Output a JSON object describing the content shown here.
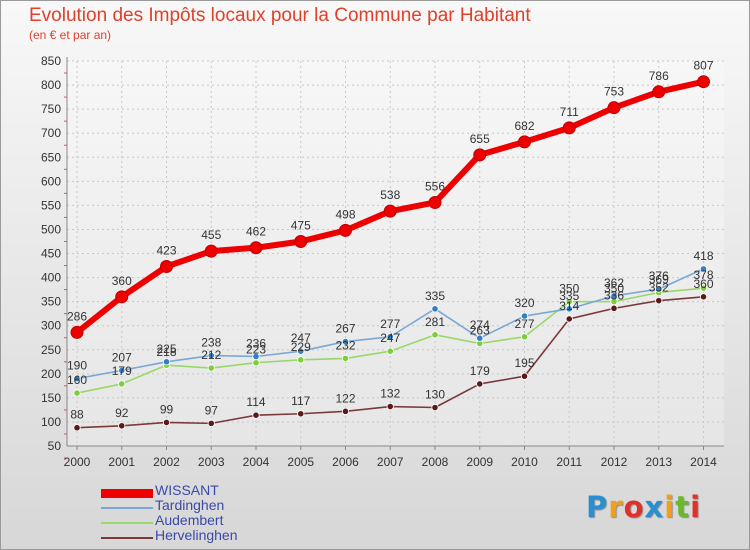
{
  "title": "Evolution des Impôts locaux pour la Commune par Habitant",
  "subtitle": "(en € et par an)",
  "logo": {
    "letters": [
      "P",
      "r",
      "o",
      "x",
      "i",
      "t",
      "i"
    ],
    "colors": [
      "#2a8fd0",
      "#f0a020",
      "#e0302a",
      "#2a8fd0",
      "#f0a020",
      "#6ab830",
      "#e0302a"
    ]
  },
  "chart_data": {
    "type": "line",
    "title": "Evolution des Impôts locaux pour la Commune par Habitant",
    "xlabel": "",
    "ylabel": "(en € et par an)",
    "categories": [
      "2000",
      "2001",
      "2002",
      "2003",
      "2004",
      "2005",
      "2006",
      "2007",
      "2008",
      "2009",
      "2010",
      "2011",
      "2012",
      "2013",
      "2014"
    ],
    "ylim": [
      50,
      850
    ],
    "yticks": [
      50,
      100,
      150,
      200,
      250,
      300,
      350,
      400,
      450,
      500,
      550,
      600,
      650,
      700,
      750,
      800,
      850
    ],
    "series": [
      {
        "name": "WISSANT",
        "color": "#ee0000",
        "marker": "#ee0000",
        "values": [
          286,
          360,
          423,
          455,
          462,
          475,
          498,
          538,
          556,
          655,
          682,
          711,
          753,
          786,
          807
        ]
      },
      {
        "name": "Tardinghen",
        "color": "#78a8d8",
        "marker": "#2f7fc4",
        "values": [
          190,
          207,
          225,
          238,
          236,
          247,
          267,
          277,
          335,
          274,
          320,
          335,
          362,
          376,
          418
        ]
      },
      {
        "name": "Audembert",
        "color": "#98d868",
        "marker": "#7ccc3c",
        "values": [
          160,
          179,
          218,
          212,
          223,
          229,
          232,
          247,
          281,
          263,
          277,
          350,
          350,
          369,
          378
        ]
      },
      {
        "name": "Hervelinghen",
        "color": "#7a3a3a",
        "marker": "#5a1a1a",
        "values": [
          88,
          92,
          99,
          97,
          114,
          117,
          122,
          132,
          130,
          179,
          195,
          314,
          336,
          352,
          360
        ]
      }
    ]
  }
}
